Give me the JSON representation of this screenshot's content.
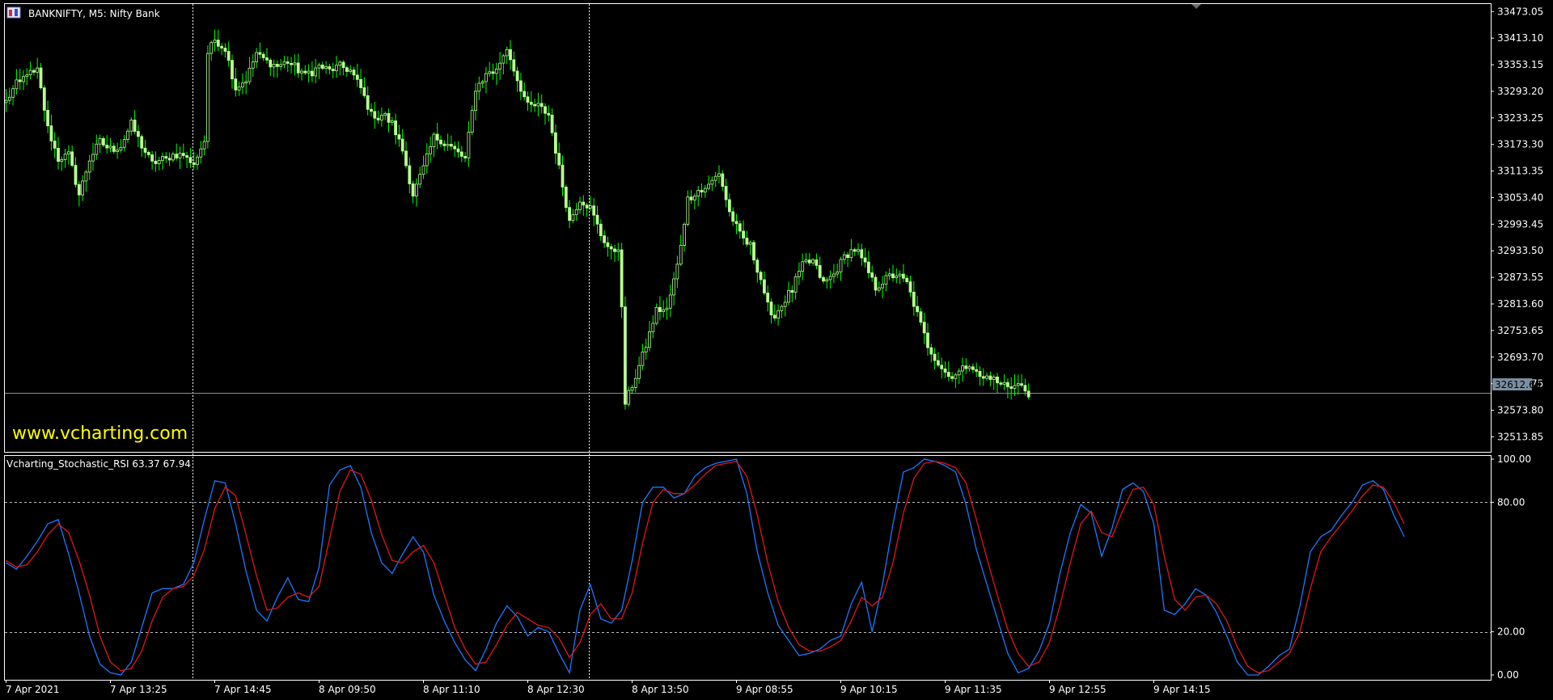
{
  "window": {
    "title": "BANKNIFTY, M5:  Nifty Bank",
    "indicator_label": "Vcharting_Stochastic_RSI 63.37 67.94",
    "watermark": "www.vcharting.com",
    "current_price_label": "32612.60"
  },
  "colors": {
    "background": "#000000",
    "frame": "#ffffff",
    "bull_candle": "#b8ff90",
    "bear_candle": "#b8ff90",
    "wick": "#00ff00",
    "stoch_k": "#1e78ff",
    "stoch_d": "#e01818",
    "watermark": "#ffff00",
    "price_line": "#8090a0"
  },
  "chart_data": [
    {
      "type": "candlestick",
      "symbol": "BANKNIFTY",
      "timeframe": "M5",
      "ylim": [
        32480,
        33490
      ],
      "price_ticks": [
        "33473.05",
        "33413.10",
        "33353.15",
        "33293.20",
        "33233.25",
        "33173.30",
        "33113.35",
        "33053.40",
        "32993.45",
        "32933.50",
        "32873.55",
        "32813.60",
        "32753.65",
        "32693.70",
        "32633.75",
        "32573.80",
        "32513.85"
      ],
      "current_price": 32612.6,
      "x_labels": [
        "7 Apr 2021",
        "7 Apr 13:25",
        "7 Apr 14:45",
        "8 Apr 09:50",
        "8 Apr 11:10",
        "8 Apr 12:30",
        "8 Apr 13:50",
        "9 Apr 08:55",
        "9 Apr 10:15",
        "9 Apr 11:35",
        "9 Apr 12:55",
        "9 Apr 14:15"
      ],
      "session_breaks": [
        57,
        143
      ],
      "anchors": [
        [
          0,
          33270
        ],
        [
          3,
          33310
        ],
        [
          6,
          33330
        ],
        [
          9,
          33340
        ],
        [
          12,
          33210
        ],
        [
          15,
          33140
        ],
        [
          18,
          33150
        ],
        [
          21,
          33060
        ],
        [
          24,
          33140
        ],
        [
          27,
          33180
        ],
        [
          30,
          33160
        ],
        [
          33,
          33170
        ],
        [
          36,
          33220
        ],
        [
          39,
          33170
        ],
        [
          42,
          33130
        ],
        [
          45,
          33140
        ],
        [
          48,
          33150
        ],
        [
          51,
          33150
        ],
        [
          54,
          33130
        ],
        [
          57,
          33180
        ],
        [
          58,
          33380
        ],
        [
          60,
          33410
        ],
        [
          63,
          33390
        ],
        [
          66,
          33300
        ],
        [
          69,
          33320
        ],
        [
          72,
          33380
        ],
        [
          75,
          33360
        ],
        [
          78,
          33350
        ],
        [
          81,
          33360
        ],
        [
          84,
          33340
        ],
        [
          87,
          33330
        ],
        [
          90,
          33350
        ],
        [
          93,
          33340
        ],
        [
          96,
          33350
        ],
        [
          99,
          33340
        ],
        [
          102,
          33300
        ],
        [
          105,
          33240
        ],
        [
          108,
          33240
        ],
        [
          111,
          33220
        ],
        [
          114,
          33160
        ],
        [
          117,
          33060
        ],
        [
          120,
          33120
        ],
        [
          123,
          33190
        ],
        [
          126,
          33180
        ],
        [
          129,
          33160
        ],
        [
          132,
          33140
        ],
        [
          135,
          33300
        ],
        [
          138,
          33330
        ],
        [
          141,
          33340
        ],
        [
          144,
          33390
        ],
        [
          147,
          33320
        ],
        [
          150,
          33260
        ],
        [
          153,
          33260
        ],
        [
          156,
          33240
        ],
        [
          159,
          33120
        ],
        [
          162,
          33000
        ],
        [
          165,
          33050
        ],
        [
          168,
          33030
        ],
        [
          171,
          32970
        ],
        [
          174,
          32930
        ],
        [
          176,
          32940
        ],
        [
          177,
          32800
        ],
        [
          178,
          32590
        ],
        [
          181,
          32650
        ],
        [
          184,
          32720
        ],
        [
          187,
          32800
        ],
        [
          190,
          32800
        ],
        [
          193,
          32900
        ],
        [
          196,
          33050
        ],
        [
          199,
          33070
        ],
        [
          202,
          33080
        ],
        [
          205,
          33110
        ],
        [
          208,
          33020
        ],
        [
          211,
          32970
        ],
        [
          214,
          32940
        ],
        [
          217,
          32870
        ],
        [
          220,
          32780
        ],
        [
          223,
          32810
        ],
        [
          226,
          32850
        ],
        [
          229,
          32900
        ],
        [
          232,
          32910
        ],
        [
          235,
          32860
        ],
        [
          238,
          32880
        ],
        [
          241,
          32920
        ],
        [
          244,
          32940
        ],
        [
          247,
          32900
        ],
        [
          250,
          32850
        ],
        [
          253,
          32870
        ],
        [
          256,
          32880
        ],
        [
          259,
          32860
        ],
        [
          262,
          32790
        ],
        [
          265,
          32720
        ],
        [
          268,
          32680
        ],
        [
          271,
          32650
        ],
        [
          274,
          32660
        ],
        [
          277,
          32680
        ],
        [
          280,
          32650
        ],
        [
          283,
          32650
        ],
        [
          286,
          32630
        ],
        [
          289,
          32630
        ],
        [
          292,
          32625
        ],
        [
          294,
          32612
        ]
      ]
    },
    {
      "type": "line",
      "name": "Vcharting_Stochastic_RSI",
      "ylim": [
        0,
        100
      ],
      "levels": [
        20,
        80
      ],
      "tick_labels": [
        "100.00",
        "80.00",
        "20.00",
        "0.00"
      ],
      "x_start": 0,
      "x_step": 3,
      "series": [
        {
          "name": "%K",
          "values": [
            52,
            49,
            55,
            62,
            70,
            72,
            56,
            38,
            18,
            5,
            1,
            0,
            6,
            22,
            38,
            40,
            40,
            42,
            52,
            72,
            90,
            89,
            70,
            48,
            30,
            25,
            36,
            45,
            35,
            34,
            50,
            88,
            95,
            97,
            87,
            66,
            52,
            47,
            56,
            64,
            57,
            37,
            25,
            15,
            7,
            2,
            12,
            24,
            32,
            27,
            18,
            22,
            20,
            10,
            1,
            30,
            42,
            26,
            24,
            30,
            53,
            80,
            87,
            87,
            82,
            84,
            92,
            96,
            98,
            99,
            100,
            84,
            57,
            38,
            23,
            16,
            9,
            10,
            12,
            16,
            18,
            33,
            43,
            20,
            42,
            70,
            94,
            96,
            100,
            99,
            97,
            94,
            79,
            58,
            42,
            26,
            10,
            1,
            3,
            11,
            24,
            47,
            66,
            79,
            75,
            55,
            68,
            86,
            89,
            85,
            70,
            30,
            28,
            33,
            40,
            37,
            29,
            18,
            6,
            0,
            0,
            4,
            9,
            12,
            32,
            57,
            64,
            67,
            74,
            80,
            88,
            90,
            86,
            74,
            64
          ]
        },
        {
          "name": "%D",
          "values": [
            53,
            50,
            51,
            57,
            65,
            70,
            66,
            53,
            37,
            18,
            6,
            2,
            3,
            11,
            25,
            36,
            40,
            41,
            46,
            58,
            77,
            87,
            83,
            65,
            46,
            30,
            31,
            36,
            38,
            36,
            41,
            63,
            85,
            95,
            93,
            81,
            65,
            53,
            52,
            57,
            60,
            52,
            37,
            22,
            12,
            5,
            6,
            14,
            23,
            29,
            26,
            23,
            22,
            17,
            8,
            15,
            28,
            33,
            26,
            26,
            38,
            61,
            80,
            86,
            84,
            84,
            88,
            93,
            97,
            98,
            99,
            92,
            74,
            52,
            34,
            22,
            14,
            11,
            11,
            13,
            16,
            25,
            36,
            32,
            36,
            52,
            75,
            91,
            98,
            99,
            98,
            96,
            89,
            72,
            54,
            37,
            21,
            10,
            4,
            6,
            15,
            32,
            52,
            70,
            76,
            66,
            64,
            76,
            86,
            87,
            79,
            55,
            35,
            30,
            36,
            37,
            33,
            25,
            13,
            4,
            1,
            2,
            6,
            10,
            20,
            40,
            57,
            64,
            70,
            76,
            83,
            88,
            87,
            80,
            70
          ]
        }
      ]
    }
  ]
}
